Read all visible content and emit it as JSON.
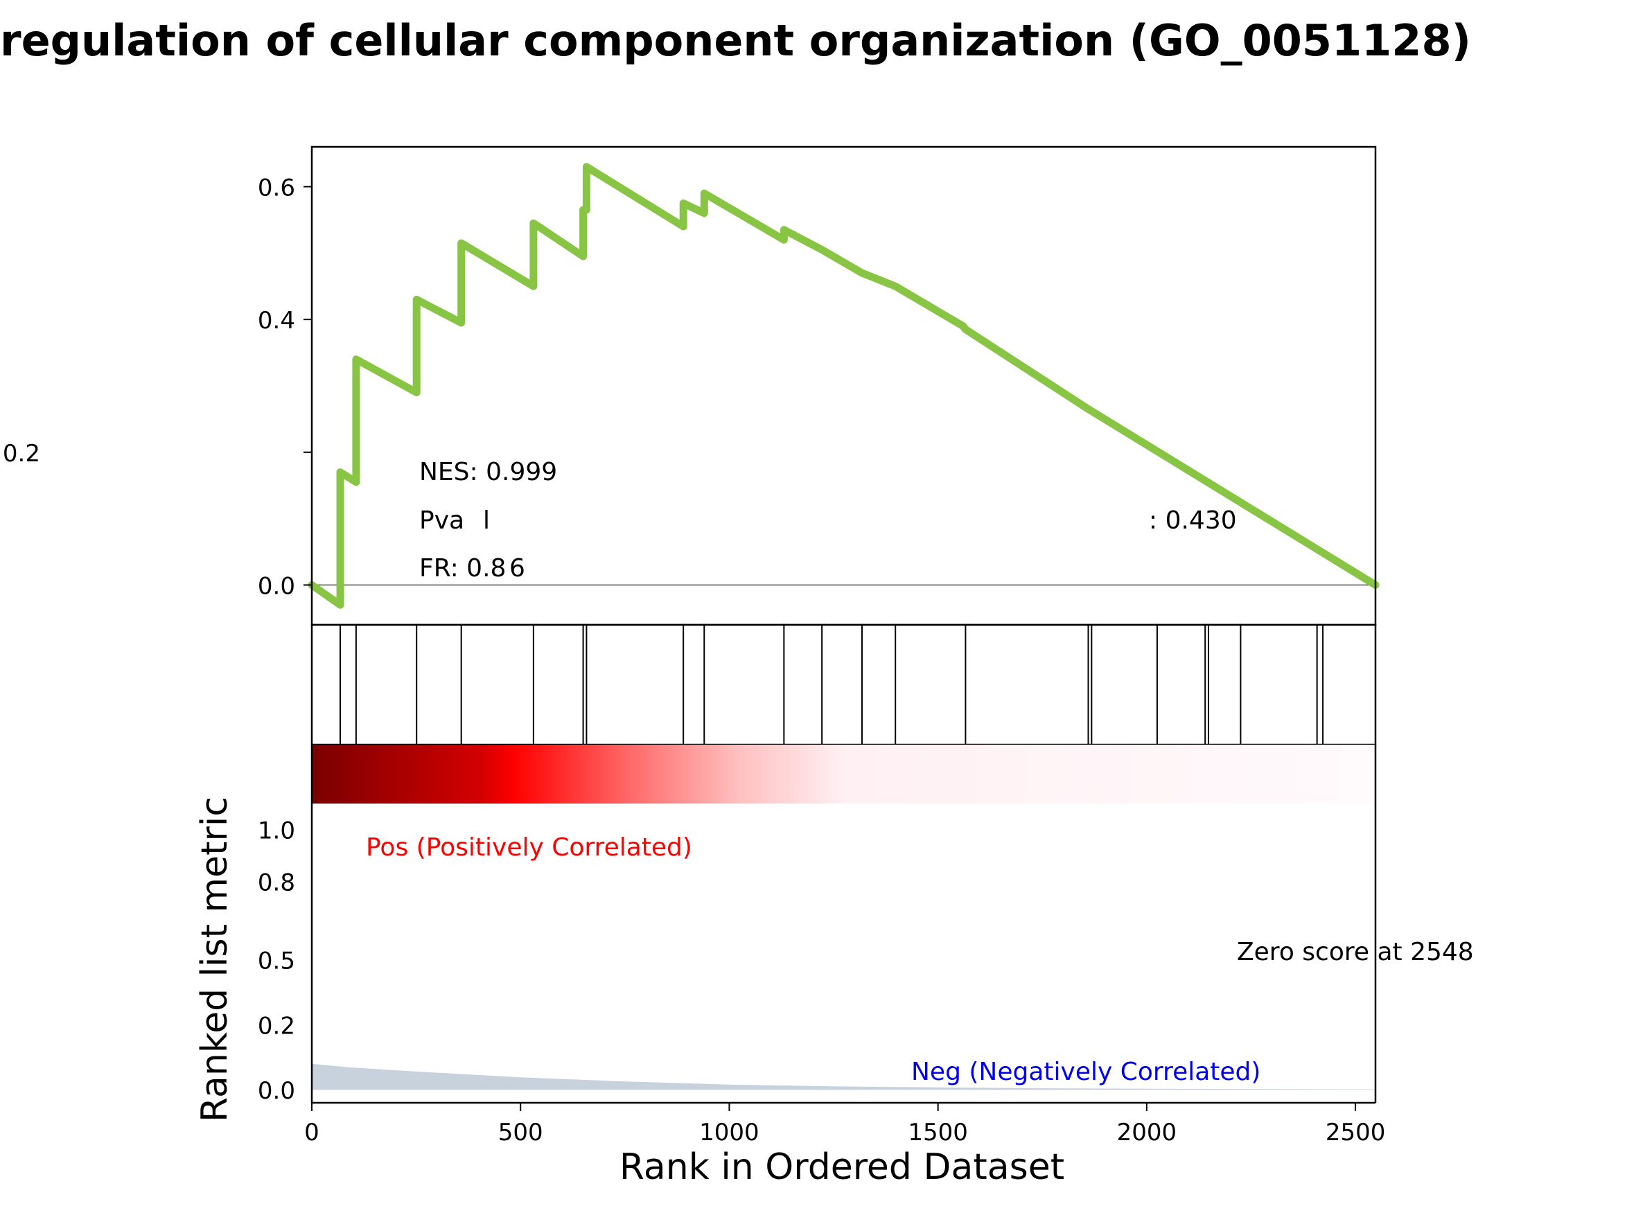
{
  "chart_data": {
    "type": "line",
    "title": "regulation of cellular component organization (GO_0051128)",
    "xlabel": "Rank in Ordered Dataset",
    "ylabel": "Ranked list metric",
    "xlim": [
      0,
      2548
    ],
    "x_ticks": [
      0,
      500,
      1000,
      1500,
      2000,
      2500
    ],
    "enrichment_panel": {
      "ylim": [
        -0.06,
        0.66
      ],
      "y_ticks": [
        {
          "value": 0.6,
          "label": "0.6"
        },
        {
          "value": 0.4,
          "label": "0.4"
        },
        {
          "value": 0.2,
          "label": "0.2"
        },
        {
          "value": 0.0,
          "label": "0.0"
        }
      ],
      "line_color": "#88c544",
      "series": [
        {
          "x": [
            0,
            68,
            68,
            106,
            106,
            251,
            251,
            358,
            358,
            531,
            531,
            650,
            650,
            658,
            658,
            890,
            890,
            940,
            940,
            1131,
            1131,
            1222,
            1222,
            1318,
            1318,
            1398,
            1398,
            1560,
            1566,
            1860,
            1868,
            2548
          ],
          "y": [
            0.0,
            -0.03,
            0.17,
            0.155,
            0.34,
            0.29,
            0.43,
            0.395,
            0.515,
            0.45,
            0.545,
            0.495,
            0.565,
            0.565,
            0.63,
            0.54,
            0.575,
            0.56,
            0.59,
            0.52,
            0.535,
            0.505,
            0.505,
            0.47,
            0.47,
            0.45,
            0.45,
            0.39,
            0.385,
            0.265,
            0.262,
            0.0
          ]
        }
      ],
      "annotations": {
        "nes": "NES: 0.999",
        "pval_left": "Pva",
        "pval_mid": "l",
        "pval_right": ": 0.430",
        "fdr_a": "FR: 0.8",
        "fdr_b": "6"
      }
    },
    "hits": [
      68,
      106,
      251,
      358,
      531,
      650,
      658,
      890,
      940,
      1131,
      1222,
      1318,
      1398,
      1566,
      1860,
      1868,
      2025,
      2140,
      2148,
      2225,
      2408,
      2422
    ],
    "ranked_panel": {
      "ylim": [
        -0.05,
        1.1
      ],
      "y_ticks": [
        {
          "value": 1.0,
          "label": "1.0"
        },
        {
          "value": 0.8,
          "label": "0.8"
        },
        {
          "value": 0.5,
          "label": "0.5"
        },
        {
          "value": 0.25,
          "label": "0.2"
        },
        {
          "value": 0.0,
          "label": "0.0"
        }
      ],
      "metric_x": [
        0,
        100,
        250,
        500,
        750,
        1000,
        1250,
        1500,
        1750,
        2000,
        2250,
        2548
      ],
      "metric_y": [
        0.1,
        0.085,
        0.07,
        0.048,
        0.032,
        0.02,
        0.013,
        0.009,
        0.006,
        0.004,
        0.003,
        0.002
      ],
      "fill_color": "#c8d2dc",
      "pos_label": "Pos (Positively Correlated)",
      "pos_color": "#ff0000",
      "neg_label": "Neg (Negatively Correlated)",
      "neg_color": "#0000ee",
      "zero_label": "Zero score at 2548"
    },
    "heat_colors": [
      "#7a0000",
      "#d40000",
      "#ff0000",
      "#ff6a6a",
      "#ffbfbf",
      "#fff0f3",
      "#fffafc"
    ]
  }
}
